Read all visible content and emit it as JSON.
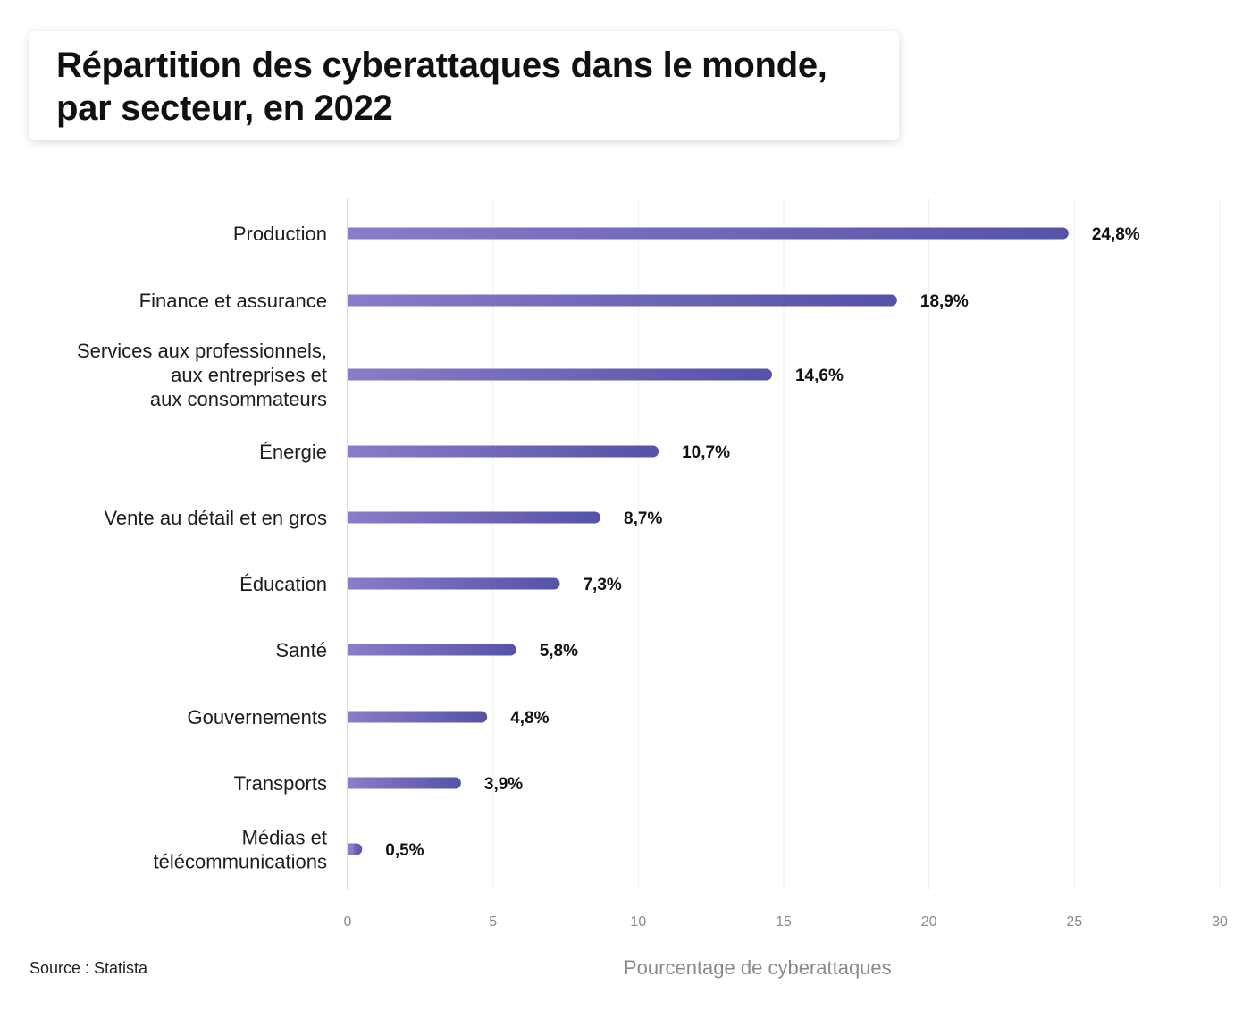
{
  "chart_data": {
    "type": "bar",
    "orientation": "horizontal",
    "title": "Répartition des cyberattaques dans le monde, par secteur, en 2022",
    "categories": [
      "Production",
      "Finance et assurance",
      "Services aux professionnels, aux entreprises et aux consommateurs",
      "Énergie",
      "Vente au détail et en gros",
      "Éducation",
      "Santé",
      "Gouvernements",
      "Transports",
      "Médias et télécommunications"
    ],
    "category_lines": [
      [
        "Production"
      ],
      [
        "Finance et assurance"
      ],
      [
        "Services aux professionnels,",
        "aux entreprises et",
        "aux consommateurs"
      ],
      [
        "Énergie"
      ],
      [
        "Vente au détail et en gros"
      ],
      [
        "Éducation"
      ],
      [
        "Santé"
      ],
      [
        "Gouvernements"
      ],
      [
        "Transports"
      ],
      [
        "Médias et",
        "télécommunications"
      ]
    ],
    "values": [
      24.8,
      18.9,
      14.6,
      10.7,
      8.7,
      7.3,
      5.8,
      4.8,
      3.9,
      0.5
    ],
    "value_labels": [
      "24,8%",
      "18,9%",
      "14,6%",
      "10,7%",
      "8,7%",
      "7,3%",
      "5,8%",
      "4,8%",
      "3,9%",
      "0,5%"
    ],
    "xlabel": "Pourcentage de cyberattaques",
    "ylabel": "",
    "xlim": [
      0,
      30
    ],
    "xticks": [
      0,
      5,
      10,
      15,
      20,
      25,
      30
    ],
    "grid": true,
    "legend": "none",
    "colors": {
      "bar_start": "#8a7cc8",
      "bar_end": "#5552a8",
      "grid": "#efefef",
      "axis": "#cfcfcf"
    }
  },
  "title_lines": [
    "Répartition des cyberattaques dans le monde,",
    "par secteur, en 2022"
  ],
  "source": "Source : Statista"
}
